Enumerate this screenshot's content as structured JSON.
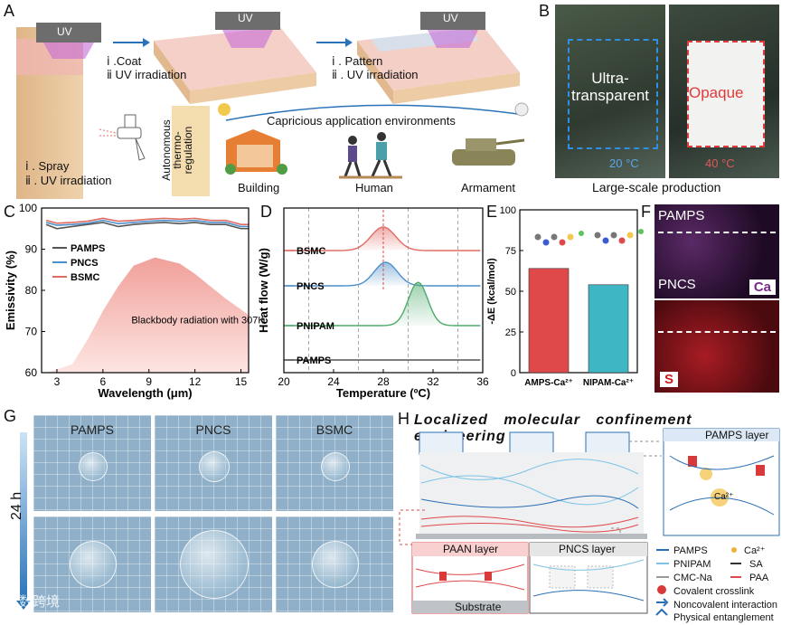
{
  "panels": {
    "A": "A",
    "B": "B",
    "C": "C",
    "D": "D",
    "E": "E",
    "F": "F",
    "G": "G",
    "H": "H"
  },
  "panelA": {
    "uv": "UV",
    "step1": [
      "ⅰ . Spray",
      "ⅱ . UV irradiation"
    ],
    "step2": [
      "ⅰ .Coat",
      "ⅱ UV irradiation"
    ],
    "step3": [
      "ⅰ . Pattern",
      "ⅱ . UV irradiation"
    ],
    "side_label": [
      "Autonomous",
      "thermo-",
      "regulation"
    ],
    "arc_label": "Capricious application environments",
    "apps": [
      "Building",
      "Human",
      "Armament"
    ]
  },
  "panelB": {
    "left_text": [
      "Ultra-",
      "transparent"
    ],
    "right_text": "Opaque",
    "left_temp": "20 °C",
    "right_temp": "40 °C",
    "caption": "Large-scale production"
  },
  "chart_data": [
    {
      "type": "line",
      "panel": "C",
      "xlabel": "Wavelength (μm)",
      "ylabel": "Emissivity (%)",
      "xlim": [
        2,
        15.5
      ],
      "ylim": [
        60,
        100
      ],
      "xticks": [
        3,
        6,
        9,
        12,
        15
      ],
      "yticks": [
        60,
        70,
        80,
        90,
        100
      ],
      "series": [
        {
          "name": "PAMPS",
          "color": "#555555",
          "x": [
            2.3,
            3,
            4,
            5,
            6,
            7,
            8,
            9,
            10,
            11,
            12,
            13,
            14,
            15,
            15.5
          ],
          "y": [
            96,
            95,
            95.5,
            96,
            96.5,
            95.5,
            96,
            96.3,
            96.5,
            96.2,
            96.5,
            96,
            96,
            95,
            95
          ]
        },
        {
          "name": "PNCS",
          "color": "#4d8fc9",
          "x": [
            2.3,
            3,
            4,
            5,
            6,
            7,
            8,
            9,
            10,
            11,
            12,
            13,
            14,
            15,
            15.5
          ],
          "y": [
            96.5,
            95.8,
            96,
            96.3,
            97,
            96.2,
            96.5,
            96.8,
            97,
            96.8,
            97,
            96.5,
            96.5,
            95.5,
            95.5
          ]
        },
        {
          "name": "BSMC",
          "color": "#e06b63",
          "x": [
            2.3,
            3,
            4,
            5,
            6,
            7,
            8,
            9,
            10,
            11,
            12,
            13,
            14,
            15,
            15.5
          ],
          "y": [
            97,
            96.3,
            96.5,
            96.8,
            97.5,
            96.8,
            97,
            97.3,
            97.5,
            97.3,
            97.5,
            97,
            97,
            96,
            96
          ]
        }
      ],
      "area": {
        "name": "Blackbody radiation with 307K",
        "peak_x": 9.4,
        "peak_y": 88,
        "x": [
          2.3,
          4,
          5,
          6,
          7,
          8,
          9.4,
          11,
          12,
          13,
          14,
          15.5
        ],
        "y": [
          60,
          62,
          68,
          75,
          81,
          86,
          88,
          86.5,
          84,
          81,
          78,
          74
        ]
      }
    },
    {
      "type": "line",
      "panel": "D",
      "xlabel": "Temperature (ºC)",
      "ylabel": "Heat flow (W/g)",
      "xlim": [
        20,
        36
      ],
      "xticks": [
        20,
        24,
        28,
        32,
        36
      ],
      "series": [
        {
          "name": "BSMC",
          "color": "#e06b63",
          "peak_x": 28,
          "baseline_level": 0
        },
        {
          "name": "PNCS",
          "color": "#4d8fc9",
          "peak_x": 28.2,
          "baseline_level": 1
        },
        {
          "name": "PNIPAM",
          "color": "#4daa6a",
          "peak_x": 30.8,
          "baseline_level": 2
        },
        {
          "name": "PAMPS",
          "color": "#555555",
          "peak_x": null,
          "baseline_level": 3
        }
      ],
      "reference_lines": [
        22,
        26,
        30,
        34
      ]
    },
    {
      "type": "bar",
      "panel": "E",
      "categories": [
        "AMPS-Ca²⁺",
        "NIPAM-Ca²⁺"
      ],
      "values": [
        64,
        54
      ],
      "colors": [
        "#e0494a",
        "#3fb6c3"
      ],
      "ylabel": "-ΔE (kcal/mol)",
      "ylim": [
        0,
        100
      ],
      "yticks": [
        0,
        25,
        50,
        75,
        100
      ]
    }
  ],
  "panelF": {
    "top_label": "PAMPS",
    "bottom_label": "PNCS",
    "element1": "Ca",
    "element2": "S"
  },
  "panelG": {
    "columns": [
      "PAMPS",
      "PNCS",
      "BSMC"
    ],
    "time_label": "24 h"
  },
  "panelH": {
    "title": "Localized molecular confinement engineering",
    "pamps_layer": "PAMPS layer",
    "paan_layer": "PAAN layer",
    "pncs_layer": "PNCS layer",
    "substrate": "Substrate",
    "ion": "Ca²⁺",
    "legend": [
      {
        "name": "PAMPS",
        "color": "#2a6fb5"
      },
      {
        "name": "Ca²⁺",
        "color": "#f0b23a"
      },
      {
        "name": "PNIPAM",
        "color": "#7ec3e6"
      },
      {
        "name": "SA",
        "color": "#333333"
      },
      {
        "name": "CMC-Na",
        "color": "#999999"
      },
      {
        "name": "PAA",
        "color": "#e0494a"
      },
      {
        "name": "Covalent crosslink",
        "color": "#d83a3a"
      },
      {
        "name": "Noncovalent interaction",
        "color": "#2a6fb5"
      },
      {
        "name": "Physical entanglement",
        "color": "#2a6fb5"
      }
    ]
  },
  "watermark": "大数跨境"
}
